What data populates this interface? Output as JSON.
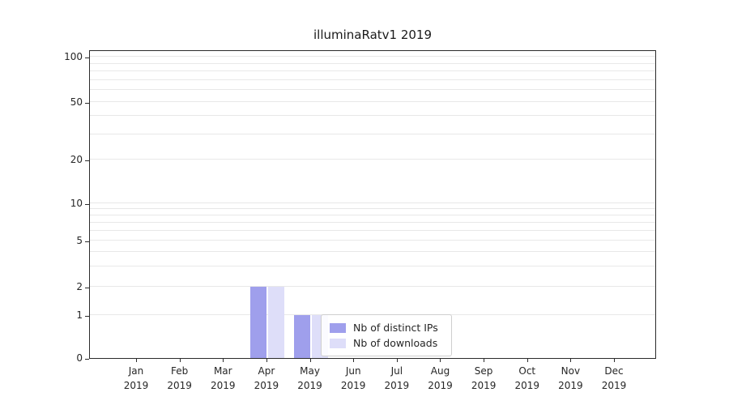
{
  "chart_data": {
    "type": "bar",
    "title": "illuminaRatv1 2019",
    "categories": [
      "Jan 2019",
      "Feb 2019",
      "Mar 2019",
      "Apr 2019",
      "May 2019",
      "Jun 2019",
      "Jul 2019",
      "Aug 2019",
      "Sep 2019",
      "Oct 2019",
      "Nov 2019",
      "Dec 2019"
    ],
    "series": [
      {
        "name": "Nb of distinct IPs",
        "color": "#9f9fec",
        "values": [
          0,
          0,
          0,
          2,
          1,
          0,
          0,
          0,
          0,
          0,
          0,
          0
        ]
      },
      {
        "name": "Nb of downloads",
        "color": "#dedef9",
        "values": [
          0,
          0,
          0,
          2,
          1,
          0,
          0,
          0,
          0,
          0,
          0,
          0
        ]
      }
    ],
    "yticks": [
      0,
      1,
      2,
      5,
      10,
      20,
      50,
      100
    ],
    "ylim": [
      0,
      110
    ],
    "yscale": "symlog",
    "grid": "horizontal, minor log gridlines",
    "legend_position": "inside lower-center"
  }
}
